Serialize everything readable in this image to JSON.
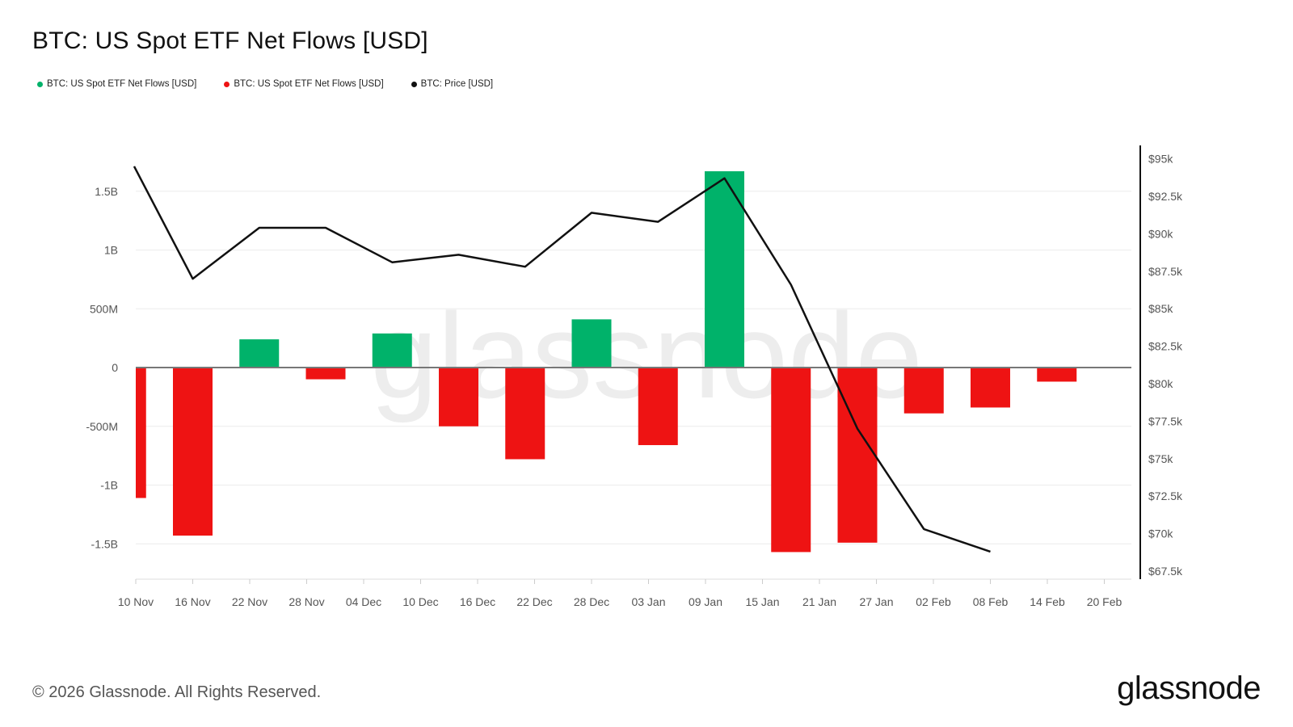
{
  "title": "BTC: US Spot ETF Net Flows [USD]",
  "legend": [
    {
      "label": "BTC: US Spot ETF Net Flows [USD]",
      "color": "#00b26a"
    },
    {
      "label": "BTC: US Spot ETF Net Flows [USD]",
      "color": "#ee1313"
    },
    {
      "label": "BTC: Price [USD]",
      "color": "#111111"
    }
  ],
  "watermark": "glassnode",
  "footer": {
    "copyright": "© 2026 Glassnode. All Rights Reserved.",
    "logo": "glassnode"
  },
  "colors": {
    "positive": "#00b26a",
    "negative": "#ee1313",
    "price": "#111111",
    "grid": "#ececec",
    "zero": "#777777"
  },
  "chart_data": {
    "type": "bar",
    "title": "BTC: US Spot ETF Net Flows [USD]",
    "x_ticks": [
      "10 Nov",
      "16 Nov",
      "22 Nov",
      "28 Nov",
      "04 Dec",
      "10 Dec",
      "16 Dec",
      "22 Dec",
      "28 Dec",
      "03 Jan",
      "09 Jan",
      "15 Jan",
      "21 Jan",
      "27 Jan",
      "02 Feb",
      "08 Feb",
      "14 Feb",
      "20 Feb"
    ],
    "y_left": {
      "ticks": [
        1.5,
        1,
        0.5,
        0,
        -0.5,
        -1,
        -1.5
      ],
      "tick_labels": [
        "1.5B",
        "1B",
        "500M",
        "0",
        "-500M",
        "-1B",
        "-1.5B"
      ],
      "range": [
        -1.82,
        1.88
      ],
      "unit": "billion USD"
    },
    "y_right": {
      "ticks": [
        95000,
        92500,
        90000,
        87500,
        85000,
        82500,
        80000,
        77500,
        75000,
        72500,
        70000,
        67500
      ],
      "tick_labels": [
        "$95k",
        "$92.5k",
        "$90k",
        "$87.5k",
        "$85k",
        "$82.5k",
        "$80k",
        "$77.5k",
        "$75k",
        "$72.5k",
        "$70k",
        "$67.5k"
      ],
      "range": [
        67000,
        96000
      ]
    },
    "grid": true,
    "legend_position": "top-left",
    "bars": {
      "dates": [
        "09 Nov",
        "16 Nov",
        "23 Nov",
        "30 Nov",
        "07 Dec",
        "14 Dec",
        "21 Dec",
        "28 Dec",
        "04 Jan",
        "11 Jan",
        "18 Jan",
        "25 Jan",
        "01 Feb",
        "08 Feb",
        "15 Feb"
      ],
      "values": [
        -1.11,
        -1.43,
        0.24,
        -0.1,
        0.29,
        -0.5,
        -0.78,
        0.41,
        -0.66,
        1.67,
        -1.57,
        -1.49,
        -0.39,
        -0.34,
        -0.12
      ]
    },
    "price_line": {
      "dates": [
        "10 Nov",
        "16 Nov",
        "23 Nov",
        "30 Nov",
        "07 Dec",
        "14 Dec",
        "21 Dec",
        "28 Dec",
        "04 Jan",
        "11 Jan",
        "18 Jan",
        "25 Jan",
        "01 Feb",
        "08 Feb"
      ],
      "values": [
        94500,
        87000,
        90400,
        90400,
        88100,
        88600,
        87800,
        91400,
        90800,
        93700,
        86600,
        77000,
        70300,
        68800
      ]
    }
  }
}
